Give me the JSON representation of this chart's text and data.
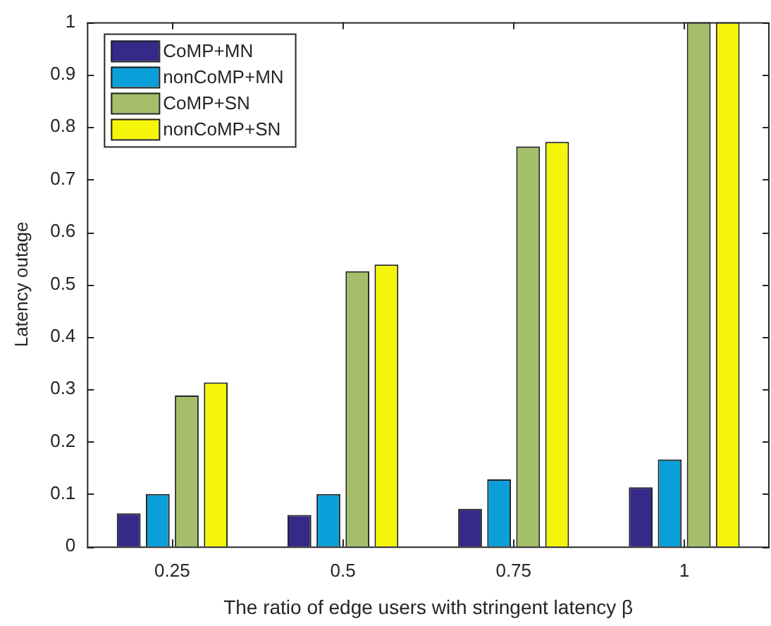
{
  "chart_data": {
    "type": "bar",
    "xlabel": "The ratio of edge users with stringent latency β",
    "ylabel": "Latency outage",
    "categories": [
      "0.25",
      "0.5",
      "0.75",
      "1"
    ],
    "series": [
      {
        "name": "CoMP+MN",
        "color": "#352a87",
        "values": [
          0.063,
          0.06,
          0.072,
          0.113
        ]
      },
      {
        "name": "nonCoMP+MN",
        "color": "#0a9fd8",
        "values": [
          0.1,
          0.1,
          0.128,
          0.166
        ]
      },
      {
        "name": "CoMP+SN",
        "color": "#a5be69",
        "values": [
          0.288,
          0.525,
          0.763,
          1
        ]
      },
      {
        "name": "nonCoMP+SN",
        "color": "#f5f50a",
        "values": [
          0.313,
          0.538,
          0.772,
          1
        ]
      }
    ],
    "ylim": [
      0,
      1
    ],
    "yticks": [
      0,
      0.1,
      0.2,
      0.3,
      0.4,
      0.5,
      0.6,
      0.7,
      0.8,
      0.9,
      1
    ],
    "grid": false,
    "legend": "top left"
  }
}
